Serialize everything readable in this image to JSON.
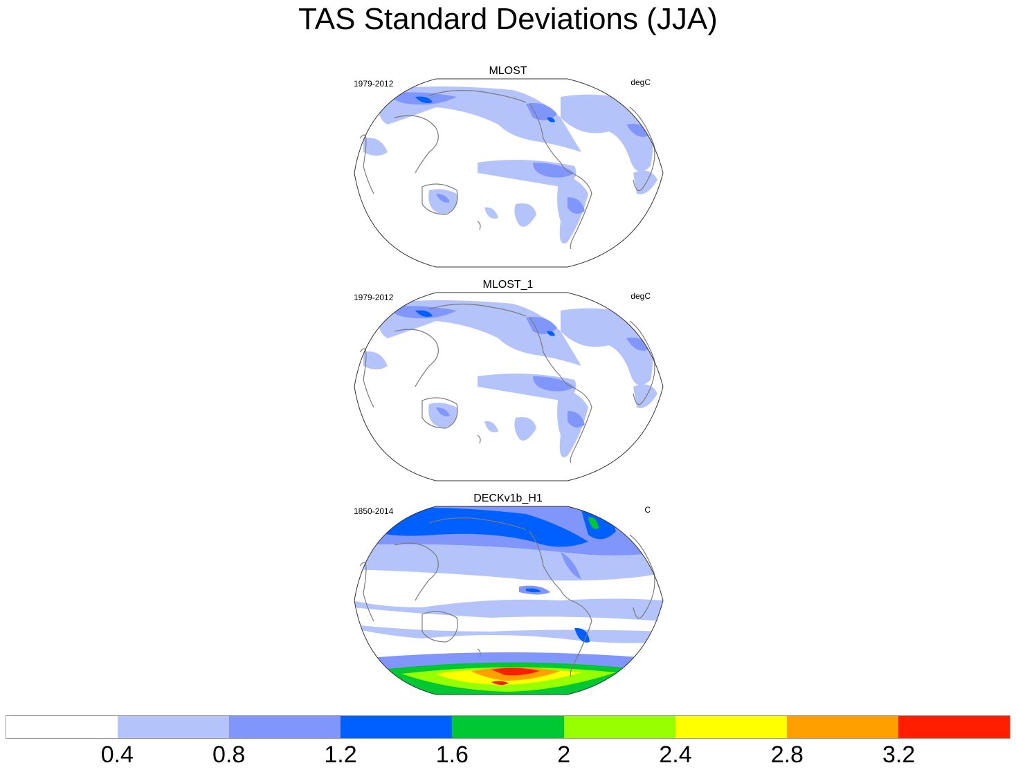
{
  "title": "TAS Standard Deviations (JJA)",
  "panels": [
    {
      "name": "MLOST",
      "period": "1979-2012",
      "units": "degC",
      "variant": "obs"
    },
    {
      "name": "MLOST_1",
      "period": "1979-2012",
      "units": "degC",
      "variant": "obs"
    },
    {
      "name": "DECKv1b_H1",
      "period": "1850-2014",
      "units": "C",
      "variant": "model"
    }
  ],
  "colorbar": {
    "colors": [
      "#ffffff",
      "#b4c3fa",
      "#8196fa",
      "#005fff",
      "#00c832",
      "#96ff00",
      "#ffff00",
      "#ffa000",
      "#ff1e00"
    ],
    "labels": [
      "0.4",
      "0.8",
      "1.2",
      "1.6",
      "2",
      "2.4",
      "2.8",
      "3.2"
    ]
  }
}
